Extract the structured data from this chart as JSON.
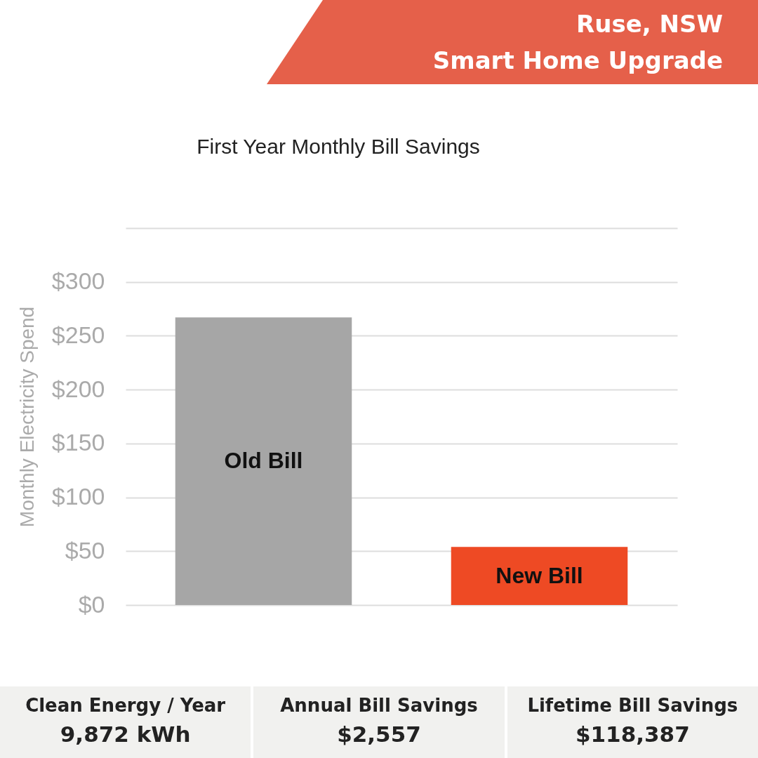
{
  "chart_data": {
    "type": "bar",
    "title": "First Year Monthly Bill Savings",
    "ylabel": "Monthly Electricity Spend",
    "categories": [
      "Old Bill",
      "New Bill"
    ],
    "values": [
      267,
      54
    ],
    "colors": [
      "#a6a6a6",
      "#ee4a24"
    ],
    "ylim": [
      0,
      350
    ],
    "yticks": [
      {
        "value": 0,
        "label": "$0"
      },
      {
        "value": 50,
        "label": "$50"
      },
      {
        "value": 100,
        "label": "$100"
      },
      {
        "value": 150,
        "label": "$150"
      },
      {
        "value": 200,
        "label": "$200"
      },
      {
        "value": 250,
        "label": "$250"
      },
      {
        "value": 300,
        "label": "$300"
      },
      {
        "value": 350,
        "label": null
      }
    ],
    "grid": "y",
    "annotations": [
      "Ruse, NSW",
      "Smart Home Upgrade",
      "Clean Energy / Year",
      "9,872 kWh",
      "Annual Bill Savings",
      "$2,557",
      "Lifetime Bill Savings",
      "$118,387"
    ]
  }
}
